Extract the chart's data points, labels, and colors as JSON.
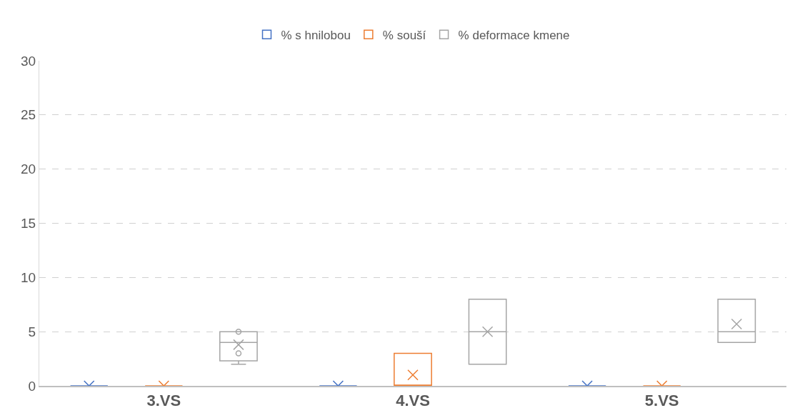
{
  "chart_data": {
    "type": "box",
    "categories": [
      "3.VS",
      "4.VS",
      "5.VS"
    ],
    "series": [
      {
        "name": "% s hnilobou",
        "color": "#4472c4",
        "boxes": [
          {
            "low": 0,
            "q1": 0,
            "median": 0,
            "q3": 0,
            "high": 0,
            "mean": 0
          },
          {
            "low": 0,
            "q1": 0,
            "median": 0,
            "q3": 0,
            "high": 0,
            "mean": 0
          },
          {
            "low": 0,
            "q1": 0,
            "median": 0,
            "q3": 0,
            "high": 0,
            "mean": 0
          }
        ]
      },
      {
        "name": "% souší",
        "color": "#ed7d31",
        "boxes": [
          {
            "low": 0,
            "q1": 0,
            "median": 0,
            "q3": 0,
            "high": 0,
            "mean": 0
          },
          {
            "low": 0,
            "q1": 0,
            "median": 0,
            "q3": 3,
            "high": 3,
            "mean": 1
          },
          {
            "low": 0,
            "q1": 0,
            "median": 0,
            "q3": 0,
            "high": 0,
            "mean": 0
          }
        ]
      },
      {
        "name": "% deformace kmene",
        "color": "#a5a5a5",
        "boxes": [
          {
            "low": 2,
            "q1": 2.3,
            "median": 4,
            "q3": 5,
            "high": 5,
            "mean": 3.8,
            "outliers": [
              5,
              3
            ]
          },
          {
            "low": 2,
            "q1": 2,
            "median": 5,
            "q3": 8,
            "high": 8,
            "mean": 5
          },
          {
            "low": 4,
            "q1": 4,
            "median": 5,
            "q3": 8,
            "high": 8,
            "mean": 5.7
          }
        ]
      }
    ],
    "ylim": [
      0,
      30
    ],
    "yticks": [
      0,
      5,
      10,
      15,
      20,
      25,
      30
    ],
    "grid": "y",
    "legend": "top",
    "marker": "cross"
  }
}
